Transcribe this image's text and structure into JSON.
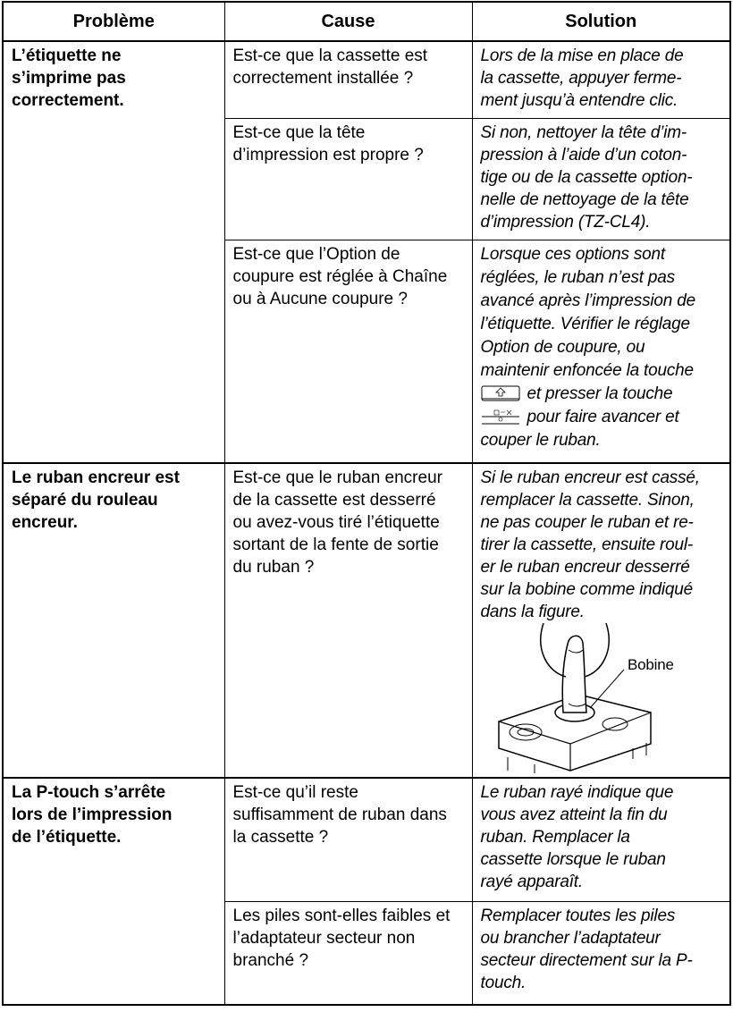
{
  "header": [
    "Problème",
    "Cause",
    "Solution"
  ],
  "groups": [
    {
      "problem": [
        "L’étiquette ne",
        "s’imprime pas",
        "correctement."
      ],
      "items": [
        {
          "cause": [
            "Est-ce que la cassette est",
            "correctement installée ?"
          ],
          "solution": [
            "Lors de la mise en place de",
            "la cassette, appuyer ferme-",
            "ment jusqu’à entendre clic."
          ]
        },
        {
          "cause": [
            "Est-ce que la tête",
            "d’impression est propre ?"
          ],
          "solution": [
            "Si non, nettoyer la tête d’im-",
            "pression à l’aide d’un coton-",
            "tige ou de la cassette option-",
            "nelle de nettoyage de la tête",
            "d’impression (TZ-CL4)."
          ]
        },
        {
          "cause": [
            "Est-ce que l’Option de",
            "coupure est réglée à Chaîne",
            "ou à Aucune coupure ?"
          ],
          "solution": [
            "Lorsque ces options sont",
            "réglées, le ruban n’est pas",
            "avancé après l’impression de",
            "l’étiquette. Vérifier le réglage",
            "Option de coupure, ou",
            "maintenir enfoncée la touche",
            "et presser la touche",
            "pour faire avancer et",
            "couper le ruban."
          ]
        }
      ]
    },
    {
      "problem": [
        "Le ruban encreur est",
        "séparé du rouleau",
        "encreur."
      ],
      "items": [
        {
          "cause": [
            "Est-ce que le ruban encreur",
            "de la cassette est desserré",
            "ou avez-vous tiré l’étiquette",
            "sortant de la fente de sortie",
            "du ruban ?"
          ],
          "solution": [
            "Si le ruban encreur est cassé,",
            "remplacer la cassette. Sinon,",
            "ne pas couper le ruban et re-",
            "tirer la cassette, ensuite roul-",
            "er le ruban encreur desserré",
            "sur la bobine comme indiqué",
            "dans la figure."
          ],
          "figure_label": "Bobine"
        }
      ]
    },
    {
      "problem": [
        "La P-touch s’arrête",
        "lors de l’impression",
        "de l’étiquette."
      ],
      "items": [
        {
          "cause": [
            "Est-ce qu’il reste",
            "suffisamment de ruban dans",
            "la cassette ?"
          ],
          "solution": [
            "Le ruban rayé indique que",
            "vous avez atteint la fin du",
            "ruban. Remplacer la",
            "cassette lorsque le ruban",
            "rayé apparaît."
          ]
        },
        {
          "cause": [
            "Les piles sont-elles faibles et",
            "l’adaptateur secteur non",
            "branché ?"
          ],
          "solution": [
            "Remplacer toutes les piles",
            "ou brancher l’adaptateur",
            "secteur directement sur la P-",
            "touch."
          ]
        }
      ]
    }
  ]
}
